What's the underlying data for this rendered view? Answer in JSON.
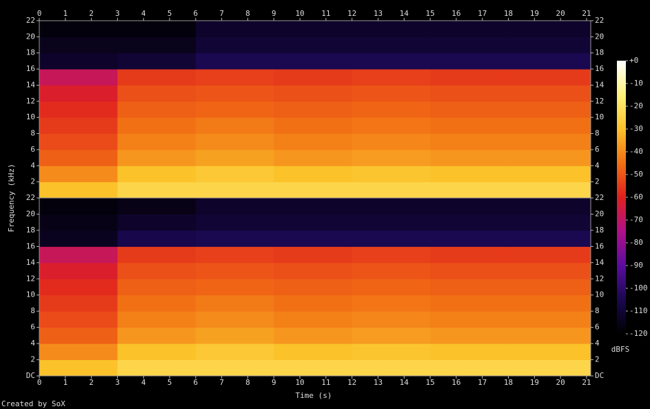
{
  "chart_data": {
    "type": "spectrogram",
    "xlabel": "Time (s)",
    "ylabel": "Frequency (kHz)",
    "footer": "Created by SoX",
    "colorbar_label": "dBFS",
    "xlim": [
      0,
      21.16
    ],
    "xticks": [
      0,
      1,
      2,
      3,
      4,
      5,
      6,
      7,
      8,
      9,
      10,
      11,
      12,
      13,
      14,
      15,
      16,
      17,
      18,
      19,
      20,
      21
    ],
    "time_bins": [
      0,
      3,
      6,
      9,
      12,
      15,
      18,
      21.16
    ],
    "freq_bins": [
      0,
      2,
      4,
      6,
      8,
      10,
      12,
      14,
      16,
      18,
      20,
      22
    ],
    "clim": [
      -120,
      0
    ],
    "cticks": [
      {
        "value": 0,
        "label": "+0"
      },
      -10,
      -20,
      -30,
      -40,
      -50,
      -60,
      -70,
      -80,
      -90,
      -100,
      -110,
      -120
    ],
    "colormap": [
      "#000000",
      "#1a0850",
      "#5a0ca0",
      "#b0108a",
      "#e0201e",
      "#f27014",
      "#fbc22a",
      "#fff27a",
      "#ffffff"
    ],
    "channels": [
      {
        "ylim": [
          0,
          22
        ],
        "yticks": [
          2,
          4,
          6,
          8,
          10,
          12,
          14,
          16,
          18,
          20,
          22
        ],
        "values": [
          [
            -30,
            -24,
            -24,
            -24,
            -24,
            -24,
            -24
          ],
          [
            -40,
            -30,
            -28,
            -30,
            -29,
            -30,
            -30
          ],
          [
            -48,
            -38,
            -36,
            -38,
            -37,
            -38,
            -38
          ],
          [
            -52,
            -42,
            -40,
            -42,
            -41,
            -42,
            -42
          ],
          [
            -55,
            -45,
            -43,
            -45,
            -44,
            -45,
            -45
          ],
          [
            -58,
            -48,
            -47,
            -48,
            -47,
            -48,
            -48
          ],
          [
            -62,
            -51,
            -50,
            -51,
            -50,
            -51,
            -51
          ],
          [
            -68,
            -55,
            -54,
            -55,
            -54,
            -55,
            -55
          ],
          [
            -112,
            -110,
            -105,
            -105,
            -105,
            -105,
            -105
          ],
          [
            -115,
            -115,
            -110,
            -110,
            -110,
            -110,
            -110
          ],
          [
            -118,
            -118,
            -112,
            -112,
            -112,
            -112,
            -112
          ]
        ]
      },
      {
        "ylim": [
          0,
          22
        ],
        "yticks": [
          {
            "value": 0,
            "label": "DC"
          },
          2,
          4,
          6,
          8,
          10,
          12,
          14,
          16,
          18,
          20,
          22
        ],
        "values": [
          [
            -30,
            -24,
            -24,
            -24,
            -24,
            -24,
            -24
          ],
          [
            -40,
            -30,
            -28,
            -30,
            -29,
            -30,
            -30
          ],
          [
            -48,
            -38,
            -36,
            -38,
            -37,
            -38,
            -38
          ],
          [
            -52,
            -42,
            -40,
            -42,
            -41,
            -42,
            -42
          ],
          [
            -55,
            -45,
            -43,
            -45,
            -44,
            -45,
            -45
          ],
          [
            -58,
            -48,
            -47,
            -48,
            -47,
            -48,
            -48
          ],
          [
            -62,
            -51,
            -50,
            -51,
            -50,
            -51,
            -51
          ],
          [
            -68,
            -55,
            -54,
            -55,
            -54,
            -55,
            -55
          ],
          [
            -114,
            -106,
            -105,
            -105,
            -105,
            -105,
            -105
          ],
          [
            -116,
            -112,
            -110,
            -110,
            -110,
            -110,
            -110
          ],
          [
            -118,
            -116,
            -112,
            -112,
            -112,
            -112,
            -112
          ]
        ]
      }
    ]
  }
}
